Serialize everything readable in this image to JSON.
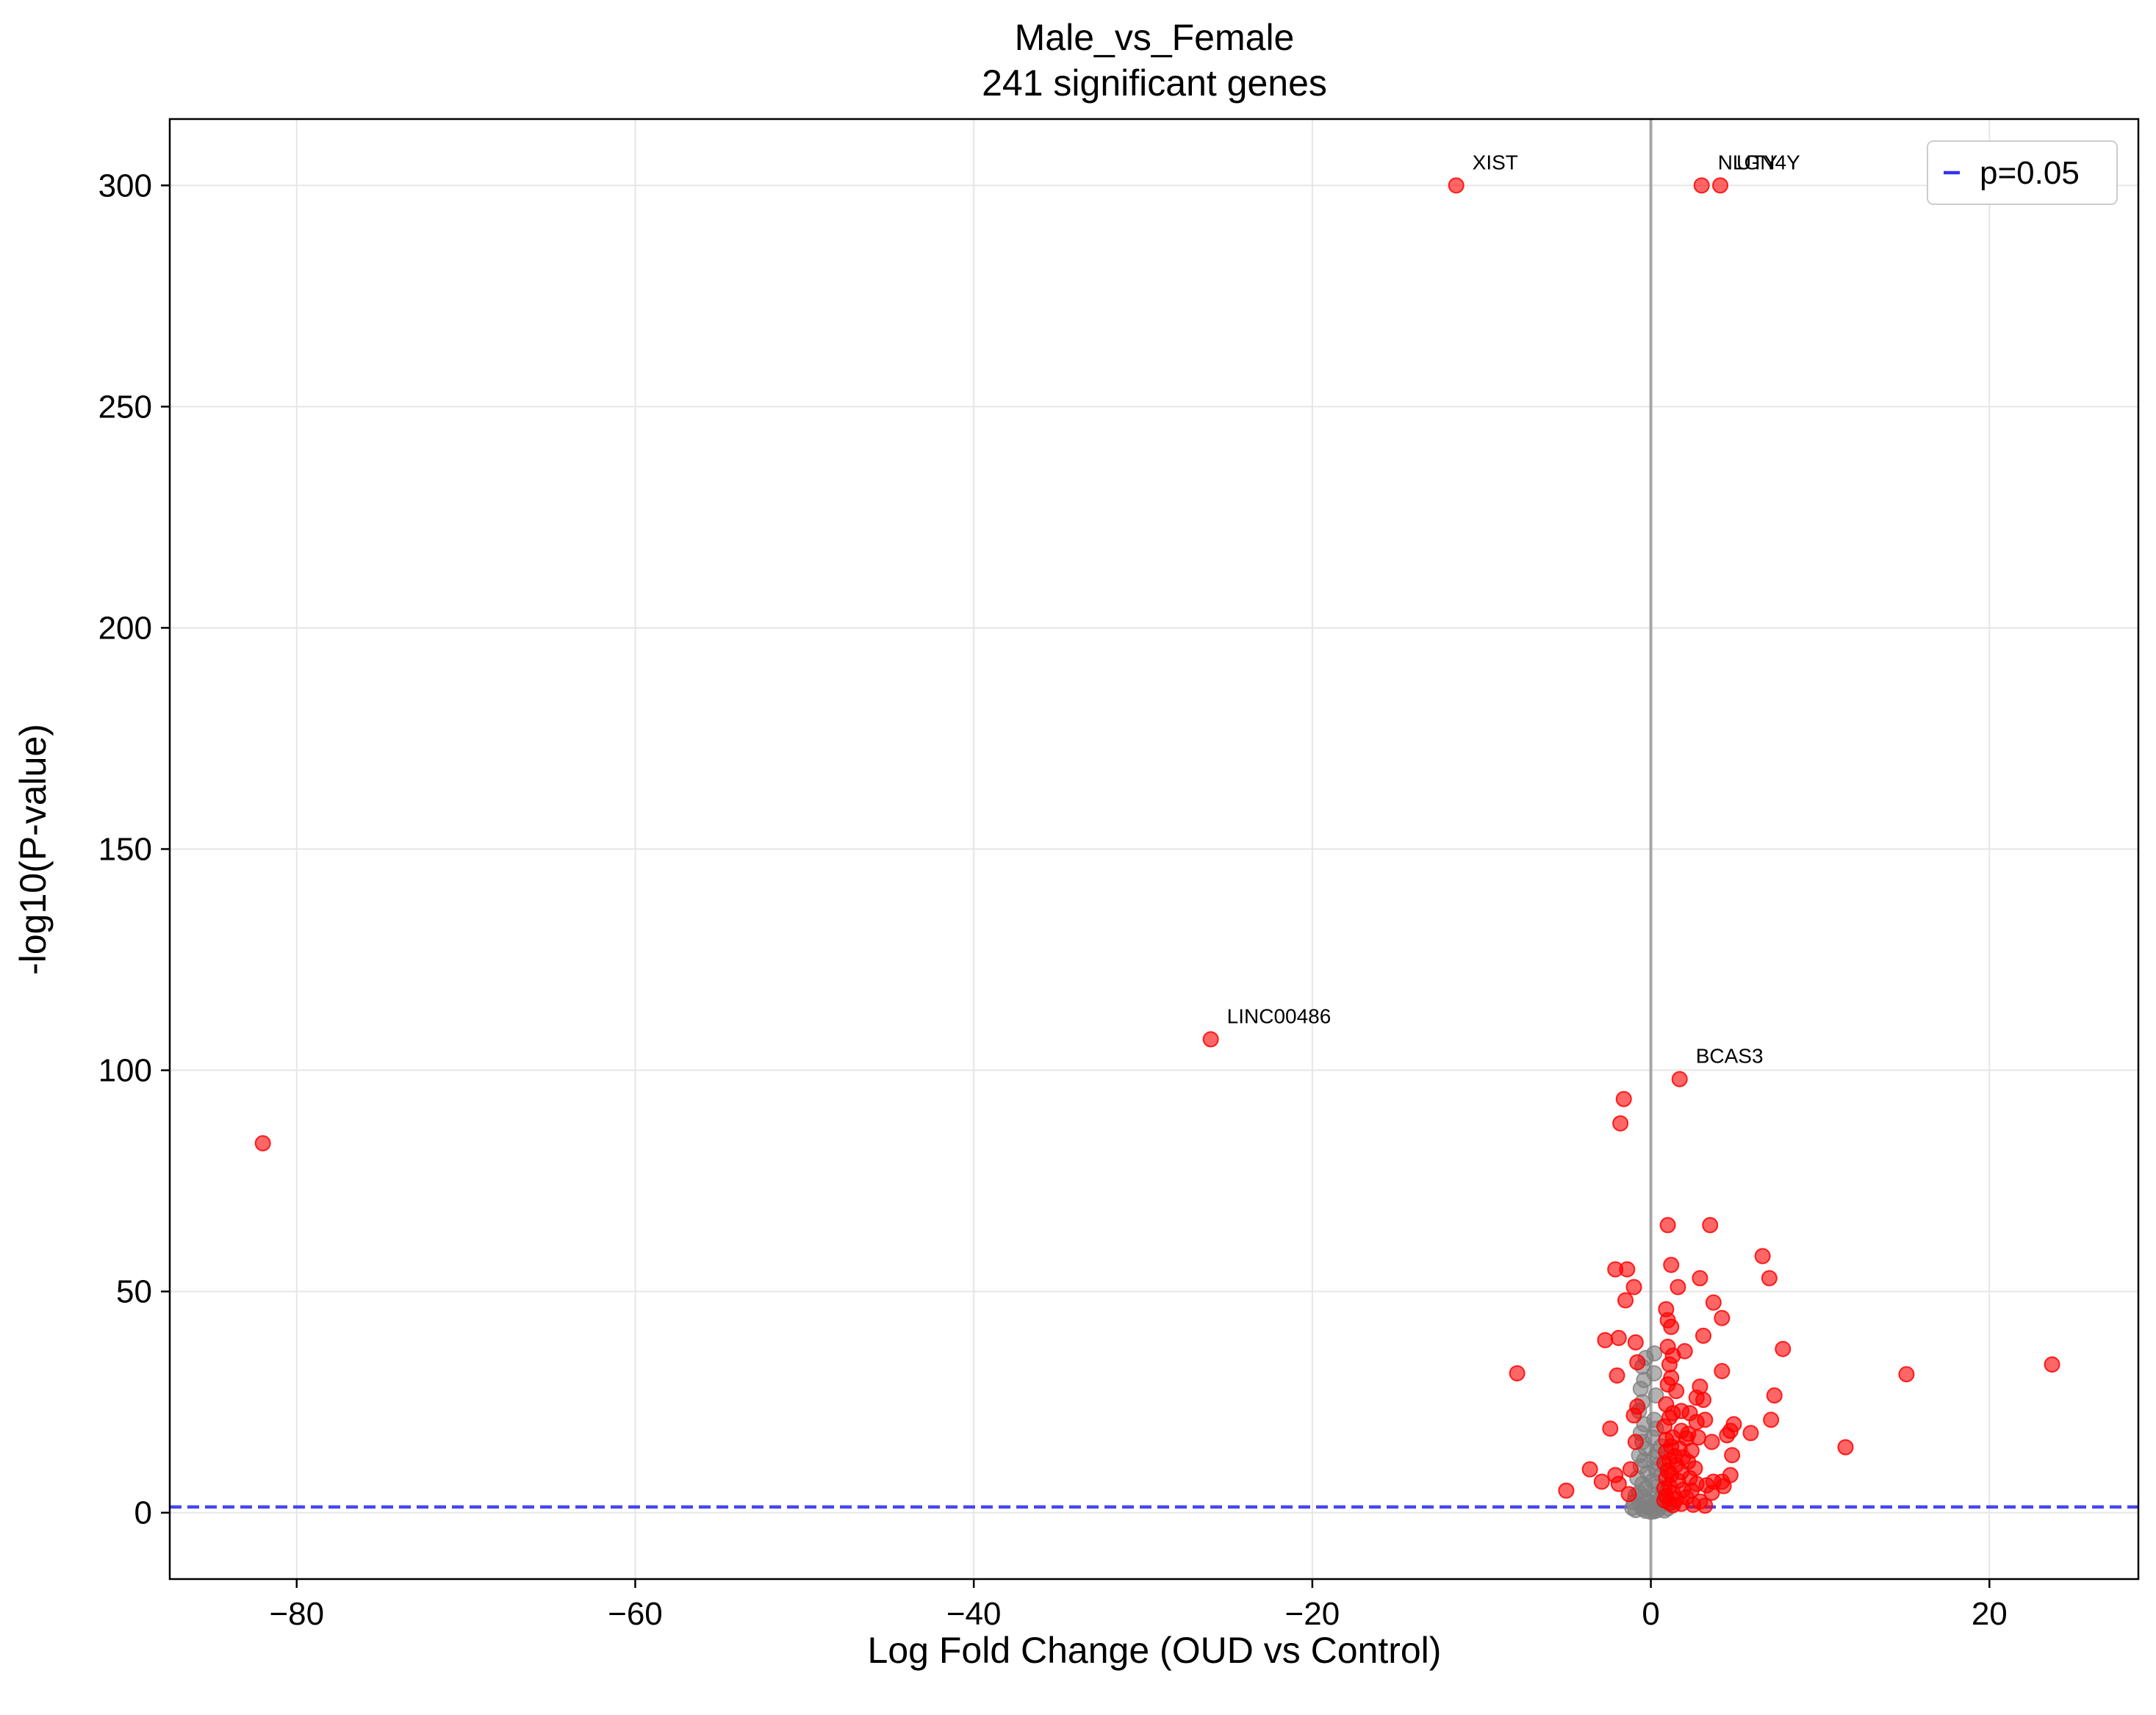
{
  "chart_data": {
    "type": "scatter",
    "title": "Male_vs_Female",
    "subtitle": "241 significant genes",
    "xlabel": "Log Fold Change (OUD vs Control)",
    "ylabel": "-log10(P-value)",
    "xlim": [
      -87.5,
      28.8
    ],
    "ylim": [
      -15,
      315
    ],
    "xticks": [
      -80,
      -60,
      -40,
      -20,
      0,
      20
    ],
    "yticks": [
      0,
      50,
      100,
      150,
      200,
      250,
      300
    ],
    "xtick_labels": [
      "−80",
      "−60",
      "−40",
      "−20",
      "0",
      "20"
    ],
    "ytick_labels": [
      "0",
      "50",
      "100",
      "150",
      "200",
      "250",
      "300"
    ],
    "grid": true,
    "legend_position": "top-right",
    "threshold": {
      "name": "p=0.05",
      "y": 1.301,
      "color": "#3333ee",
      "style": "dashed"
    },
    "zero_line_color": "#999999",
    "significant_color": "#ff0000",
    "nonsignificant_color": "#808080",
    "significant_points": [
      [
        -82,
        83.5
      ],
      [
        -26,
        107
      ],
      [
        -11.5,
        300
      ],
      [
        3,
        300
      ],
      [
        4.1,
        300
      ],
      [
        1.7,
        98
      ],
      [
        -1.6,
        93.5
      ],
      [
        -1.8,
        88
      ],
      [
        1,
        65
      ],
      [
        3.5,
        65
      ],
      [
        6.6,
        58
      ],
      [
        1.2,
        56
      ],
      [
        -2.1,
        55
      ],
      [
        -1.4,
        55
      ],
      [
        2.9,
        53
      ],
      [
        7,
        53
      ],
      [
        1.6,
        51
      ],
      [
        -1,
        51
      ],
      [
        -1.5,
        48
      ],
      [
        3.7,
        47.5
      ],
      [
        0.9,
        46
      ],
      [
        4.2,
        44
      ],
      [
        1,
        43.5
      ],
      [
        1.2,
        42
      ],
      [
        3.1,
        40
      ],
      [
        -1.9,
        39.5
      ],
      [
        -2.7,
        39
      ],
      [
        -0.9,
        38.5
      ],
      [
        1,
        37.5
      ],
      [
        7.8,
        37
      ],
      [
        2,
        36.5
      ],
      [
        1.3,
        35.5
      ],
      [
        -0.8,
        34
      ],
      [
        23.7,
        33.5
      ],
      [
        1.1,
        33.5
      ],
      [
        -7.9,
        31.5
      ],
      [
        15.1,
        31.3
      ],
      [
        -2,
        31
      ],
      [
        4.2,
        32
      ],
      [
        1.2,
        30.5
      ],
      [
        1,
        29
      ],
      [
        2.9,
        28.5
      ],
      [
        1.5,
        27.5
      ],
      [
        7.3,
        26.5
      ],
      [
        2.7,
        26
      ],
      [
        3.1,
        25.5
      ],
      [
        0.9,
        24.5
      ],
      [
        -0.8,
        24
      ],
      [
        1.8,
        23
      ],
      [
        1.3,
        22.5
      ],
      [
        2.3,
        22.5
      ],
      [
        -1,
        22
      ],
      [
        1.1,
        21.5
      ],
      [
        3.2,
        21
      ],
      [
        7.1,
        21
      ],
      [
        2.7,
        20.5
      ],
      [
        4.9,
        20
      ],
      [
        0.8,
        19.5
      ],
      [
        -2.4,
        19
      ],
      [
        4.7,
        18.5
      ],
      [
        1.8,
        18.5
      ],
      [
        2.2,
        17.8
      ],
      [
        5.9,
        18
      ],
      [
        4.5,
        17.5
      ],
      [
        1.3,
        17
      ],
      [
        2.8,
        17
      ],
      [
        2.1,
        16.8
      ],
      [
        0.9,
        16.5
      ],
      [
        3.6,
        16
      ],
      [
        -0.9,
        16
      ],
      [
        11.5,
        14.8
      ],
      [
        1.2,
        15
      ],
      [
        1.7,
        14.5
      ],
      [
        2.4,
        14
      ],
      [
        0.9,
        13.8
      ],
      [
        4.8,
        13
      ],
      [
        1.4,
        12.8
      ],
      [
        1.9,
        12.5
      ],
      [
        1.1,
        11.8
      ],
      [
        2.2,
        11.5
      ],
      [
        0.8,
        11.2
      ],
      [
        1.5,
        10.8
      ],
      [
        -3.6,
        9.8
      ],
      [
        -1.2,
        9.8
      ],
      [
        2.6,
        10
      ],
      [
        1,
        9.5
      ],
      [
        1.8,
        9.2
      ],
      [
        -2.1,
        8.5
      ],
      [
        4.7,
        8.5
      ],
      [
        1.2,
        8.5
      ],
      [
        0.9,
        7.8
      ],
      [
        2.3,
        7.8
      ],
      [
        -2.9,
        7
      ],
      [
        1.6,
        7.2
      ],
      [
        3.7,
        7
      ],
      [
        4.2,
        7
      ],
      [
        -1.9,
        6.5
      ],
      [
        2.7,
        6.5
      ],
      [
        3.3,
        6.2
      ],
      [
        4.3,
        6
      ],
      [
        1.1,
        6
      ],
      [
        0.8,
        5.5
      ],
      [
        -5,
        5
      ],
      [
        1.9,
        5.2
      ],
      [
        2.4,
        5
      ],
      [
        1.3,
        4.5
      ],
      [
        3.6,
        4.5
      ],
      [
        -1.3,
        4.2
      ],
      [
        0.9,
        3.8
      ],
      [
        2.1,
        3.5
      ],
      [
        1.5,
        3
      ],
      [
        0.8,
        2.8
      ],
      [
        2.9,
        2.5
      ],
      [
        1.1,
        2.2
      ],
      [
        1.8,
        2
      ],
      [
        2.5,
        1.8
      ],
      [
        1.3,
        1.7
      ],
      [
        3.2,
        1.6
      ]
    ],
    "nonsignificant_points": [
      [
        -0.3,
        0.4
      ],
      [
        0.2,
        0.3
      ],
      [
        0.1,
        0.8
      ],
      [
        -0.1,
        1.2
      ],
      [
        0.4,
        0.6
      ],
      [
        -0.5,
        0.9
      ],
      [
        0.6,
        1.5
      ],
      [
        -0.6,
        1.8
      ],
      [
        0.3,
        2.2
      ],
      [
        -0.2,
        2.6
      ],
      [
        0.5,
        3
      ],
      [
        -0.4,
        3.5
      ],
      [
        0.2,
        4
      ],
      [
        -0.7,
        4.5
      ],
      [
        0.7,
        5
      ],
      [
        -0.3,
        5.5
      ],
      [
        0.4,
        6
      ],
      [
        -0.5,
        6.5
      ],
      [
        0.1,
        7.2
      ],
      [
        -0.8,
        7.8
      ],
      [
        0.6,
        8.5
      ],
      [
        -0.2,
        9
      ],
      [
        0.3,
        9.8
      ],
      [
        -0.6,
        10.5
      ],
      [
        0.5,
        11
      ],
      [
        -0.4,
        11.8
      ],
      [
        0.2,
        12.5
      ],
      [
        -0.7,
        13
      ],
      [
        0.4,
        13.8
      ],
      [
        -0.3,
        14.5
      ],
      [
        0.6,
        15
      ],
      [
        -0.5,
        16
      ],
      [
        0.1,
        17
      ],
      [
        -0.6,
        18
      ],
      [
        0.3,
        19
      ],
      [
        -0.4,
        20
      ],
      [
        0.2,
        21
      ],
      [
        -0.7,
        23
      ],
      [
        -0.5,
        25
      ],
      [
        0.3,
        26.5
      ],
      [
        -0.6,
        28
      ],
      [
        -0.4,
        30
      ],
      [
        0.2,
        31.5
      ],
      [
        -0.5,
        33
      ],
      [
        -0.3,
        35
      ],
      [
        0,
        0.2
      ],
      [
        0.8,
        0.5
      ],
      [
        -0.9,
        0.6
      ],
      [
        1,
        1
      ],
      [
        -1.1,
        1.1
      ],
      [
        0.9,
        2
      ],
      [
        -1,
        2.4
      ],
      [
        0.7,
        3.2
      ],
      [
        -0.9,
        3.9
      ],
      [
        0.2,
        36
      ]
    ],
    "annotations": [
      {
        "text": "XIST",
        "x": -11.5,
        "y": 300
      },
      {
        "text": "NLGN4Y",
        "x": 3,
        "y": 300
      },
      {
        "text": "UTY",
        "x": 4.1,
        "y": 300
      },
      {
        "text": "LINC00486",
        "x": -26,
        "y": 107
      },
      {
        "text": "BCAS3",
        "x": 1.7,
        "y": 98
      }
    ]
  }
}
